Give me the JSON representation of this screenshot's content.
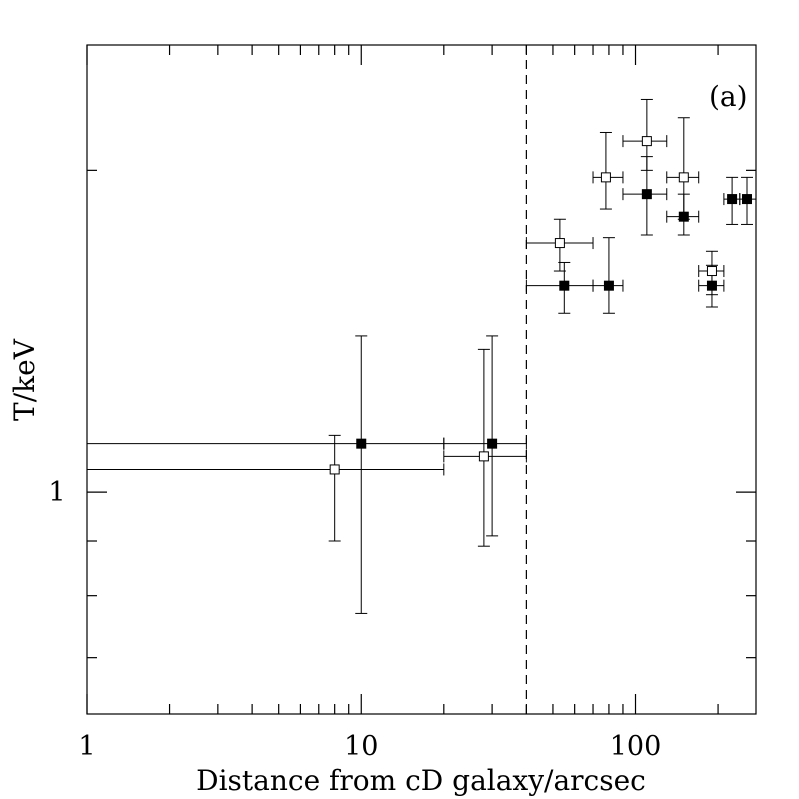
{
  "chart_data": {
    "type": "scatter",
    "xlabel": "Distance from cD galaxy/arcsec",
    "ylabel": "T/keV",
    "panel_label": "(a)",
    "xscale": "log",
    "yscale": "log",
    "xlim": [
      1,
      275
    ],
    "ylim": [
      0.62,
      2.62
    ],
    "x_tick_labels": [
      "1",
      "10",
      "100"
    ],
    "y_tick_labels": [
      "1"
    ],
    "grid": false,
    "legend": "none",
    "reference_line": {
      "x": 40,
      "style": "dashed"
    },
    "series": [
      {
        "marker": "filled-square",
        "points": [
          {
            "x": 10,
            "xerr": [
              0,
              20
            ],
            "y": 1.11,
            "yerr": [
              0.77,
              1.4
            ]
          },
          {
            "x": 30,
            "xerr": [
              20,
              40
            ],
            "y": 1.11,
            "yerr": [
              0.91,
              1.4
            ]
          },
          {
            "x": 55,
            "xerr": [
              40,
              70
            ],
            "y": 1.56,
            "yerr": [
              1.47,
              1.64
            ]
          },
          {
            "x": 80,
            "xerr": [
              70,
              90
            ],
            "y": 1.56,
            "yerr": [
              1.47,
              1.73
            ]
          },
          {
            "x": 110,
            "xerr": [
              90,
              130
            ],
            "y": 1.9,
            "yerr": [
              1.74,
              2.06
            ]
          },
          {
            "x": 150,
            "xerr": [
              130,
              170
            ],
            "y": 1.81,
            "yerr": [
              1.74,
              1.9
            ]
          },
          {
            "x": 190,
            "xerr": [
              170,
              210
            ],
            "y": 1.56,
            "yerr": [
              1.49,
              1.63
            ]
          },
          {
            "x": 225,
            "xerr": [
              210,
              240
            ],
            "y": 1.88,
            "yerr": [
              1.78,
              1.97
            ]
          },
          {
            "x": 255,
            "xerr": [
              240,
              275
            ],
            "y": 1.88,
            "yerr": [
              1.78,
              1.97
            ]
          }
        ]
      },
      {
        "marker": "open-square",
        "points": [
          {
            "x": 8,
            "xerr": [
              0,
              20
            ],
            "y": 1.05,
            "yerr": [
              0.9,
              1.13
            ]
          },
          {
            "x": 28,
            "xerr": [
              20,
              40
            ],
            "y": 1.08,
            "yerr": [
              0.89,
              1.36
            ]
          },
          {
            "x": 53,
            "xerr": [
              40,
              70
            ],
            "y": 1.71,
            "yerr": [
              1.61,
              1.8
            ]
          },
          {
            "x": 78,
            "xerr": [
              70,
              90
            ],
            "y": 1.97,
            "yerr": [
              1.84,
              2.17
            ]
          },
          {
            "x": 110,
            "xerr": [
              90,
              130
            ],
            "y": 2.13,
            "yerr": [
              2.0,
              2.33
            ]
          },
          {
            "x": 150,
            "xerr": [
              130,
              170
            ],
            "y": 1.97,
            "yerr": [
              1.8,
              2.24
            ]
          },
          {
            "x": 190,
            "xerr": [
              170,
              210
            ],
            "y": 1.61,
            "yerr": [
              1.53,
              1.68
            ]
          }
        ]
      }
    ]
  }
}
